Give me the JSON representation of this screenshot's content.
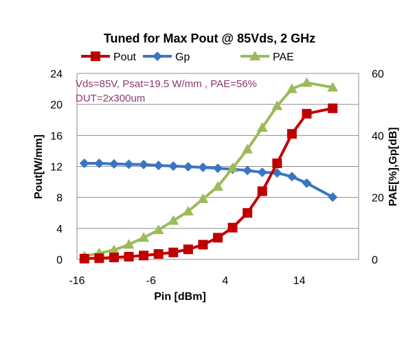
{
  "chart_data": {
    "type": "line",
    "title": "Tuned for Max Pout @ 85Vds, 2 GHz",
    "xlabel": "Pin [dBm]",
    "ylabel_left": "Pout[W/mm]",
    "ylabel_right": "PAE[%],Gp[dB]",
    "xlim": [
      -16,
      22
    ],
    "ylim_left": [
      0,
      24
    ],
    "ylim_right": [
      0,
      60
    ],
    "x_ticks": [
      "-16",
      "-6",
      "4",
      "14"
    ],
    "y_ticks_left": [
      "0",
      "4",
      "8",
      "12",
      "16",
      "20",
      "24"
    ],
    "y_ticks_right": [
      "0",
      "20",
      "40",
      "60"
    ],
    "grid": "horizontal",
    "legend_position": "top",
    "annotations": [
      "Vds=85V, Psat=19.5 W/mm , PAE=56%",
      "DUT=2x300um"
    ],
    "x": [
      -15,
      -13,
      -11,
      -9,
      -7,
      -5,
      -3,
      -1,
      1,
      3,
      5,
      7,
      9,
      11,
      13,
      15,
      18.5
    ],
    "series": [
      {
        "name": "Pout",
        "axis": "left",
        "color": "#c00000",
        "marker": "square",
        "values": [
          0.1,
          0.15,
          0.25,
          0.35,
          0.5,
          0.7,
          0.9,
          1.3,
          1.9,
          2.8,
          4.1,
          6.0,
          8.8,
          12.4,
          16.2,
          18.8,
          19.5
        ]
      },
      {
        "name": "Gp",
        "axis": "right",
        "color": "#3a75c4",
        "marker": "diamond",
        "values": [
          31,
          31,
          30.8,
          30.7,
          30.6,
          30.3,
          30.1,
          29.9,
          29.7,
          29.4,
          29.1,
          28.7,
          28.1,
          27.9,
          26.7,
          24.6,
          20.1
        ]
      },
      {
        "name": "PAE",
        "axis": "right",
        "color": "#9bbb59",
        "marker": "triangle",
        "values": [
          1,
          2,
          3,
          4.8,
          7,
          9.5,
          12.5,
          15.5,
          19.5,
          23.5,
          29.5,
          35.5,
          42.5,
          49.5,
          55,
          57,
          55.5
        ]
      }
    ]
  }
}
